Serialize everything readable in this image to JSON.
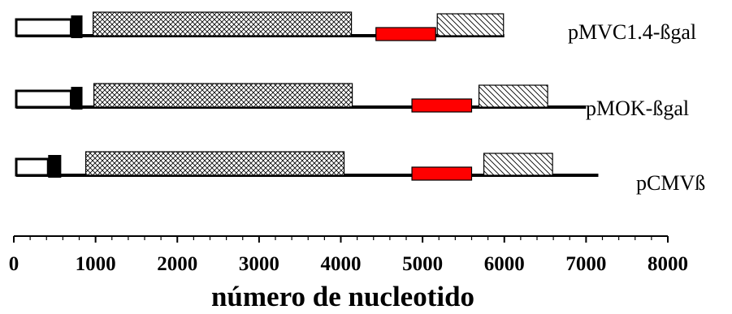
{
  "chart_data": {
    "type": "diagram",
    "xlabel": "número de nucleotido",
    "xlim": [
      0,
      8000
    ],
    "xticks": [
      0,
      1000,
      2000,
      3000,
      4000,
      5000,
      6000,
      7000,
      8000
    ],
    "tick_labels": [
      "0",
      "1000",
      "2000",
      "3000",
      "4000",
      "5000",
      "6000",
      "7000",
      "8000"
    ],
    "colors": {
      "line": "#000000",
      "red_segment": "#ff0000",
      "open_box": "#ffffff"
    },
    "plasmids": [
      {
        "name": "pMVC1.4-ßgal",
        "length": 6000,
        "features": [
          {
            "kind": "open-box",
            "start": 30,
            "end": 700
          },
          {
            "kind": "black-block",
            "start": 700,
            "end": 840
          },
          {
            "kind": "crosshatch-box",
            "start": 970,
            "end": 4130
          },
          {
            "kind": "red-bar",
            "start": 4430,
            "end": 5160
          },
          {
            "kind": "diagonal-hatch-box",
            "start": 5180,
            "end": 5990
          }
        ]
      },
      {
        "name": "pMOK-ßgal",
        "length": 7000,
        "features": [
          {
            "kind": "open-box",
            "start": 30,
            "end": 700
          },
          {
            "kind": "black-block",
            "start": 700,
            "end": 840
          },
          {
            "kind": "crosshatch-box",
            "start": 980,
            "end": 4140
          },
          {
            "kind": "red-bar",
            "start": 4870,
            "end": 5600
          },
          {
            "kind": "diagonal-hatch-box",
            "start": 5690,
            "end": 6530
          }
        ]
      },
      {
        "name": "pCMVß",
        "length": 7150,
        "features": [
          {
            "kind": "open-box",
            "start": 30,
            "end": 420
          },
          {
            "kind": "black-block",
            "start": 420,
            "end": 580
          },
          {
            "kind": "crosshatch-box",
            "start": 880,
            "end": 4040
          },
          {
            "kind": "red-bar",
            "start": 4870,
            "end": 5600
          },
          {
            "kind": "diagonal-hatch-box",
            "start": 5750,
            "end": 6590
          }
        ]
      }
    ]
  }
}
